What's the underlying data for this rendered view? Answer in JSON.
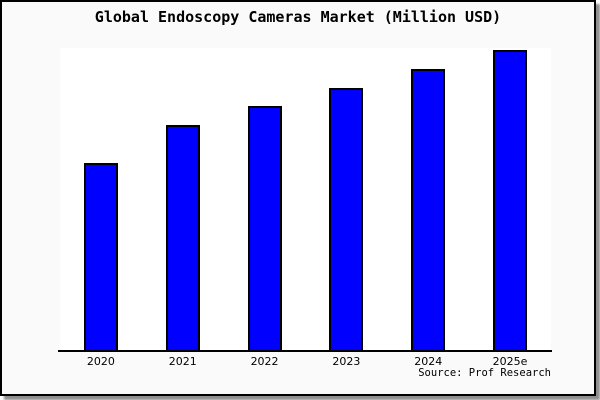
{
  "chart_data": {
    "type": "bar",
    "title": "Global Endoscopy Cameras Market (Million USD)",
    "categories": [
      "2020",
      "2021",
      "2022",
      "2023",
      "2024",
      "2025e"
    ],
    "values": [
      500,
      600,
      650,
      700,
      750,
      800
    ],
    "xlabel": "",
    "ylabel": "",
    "ylim": [
      0,
      805
    ],
    "grid": "off",
    "legend": "none",
    "bar_color": "#0000ff",
    "bar_border_color": "#000000",
    "plot_background": "#ffffff",
    "canvas_background": "#fafafa",
    "axis_color": "#000000",
    "title_color": "#000000"
  },
  "footer": {
    "source_label": "Source: Prof Research"
  }
}
